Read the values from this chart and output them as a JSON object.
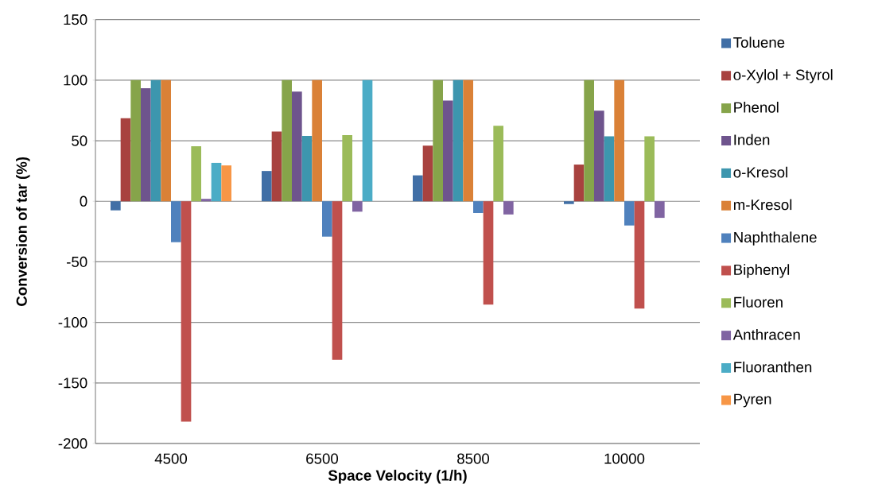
{
  "chart_data": {
    "type": "bar",
    "xlabel": "Space Velocity (1/h)",
    "ylabel": "Conversion of tar (%)",
    "categories": [
      "4500",
      "6500",
      "8500",
      "10000"
    ],
    "ylim": [
      -200,
      150
    ],
    "yticks": [
      -200,
      -150,
      -100,
      -50,
      0,
      50,
      100,
      150
    ],
    "grid": "y",
    "legend": "right",
    "series": [
      {
        "name": "Toluene",
        "color": "#416fa6",
        "values": [
          -7.5,
          25,
          21.4,
          -2.3
        ]
      },
      {
        "name": "o-Xylol + Styrol",
        "color": "#a8423f",
        "values": [
          68.5,
          57.6,
          46,
          30.3
        ]
      },
      {
        "name": "Phenol",
        "color": "#86a44a",
        "values": [
          100,
          100,
          100,
          100
        ]
      },
      {
        "name": "Inden",
        "color": "#6e548d",
        "values": [
          93.3,
          90.5,
          83.2,
          74.8
        ]
      },
      {
        "name": "o-Kresol",
        "color": "#3d96ae",
        "values": [
          100,
          54,
          100,
          53.6
        ]
      },
      {
        "name": "m-Kresol",
        "color": "#da8137",
        "values": [
          100,
          100,
          100,
          100
        ]
      },
      {
        "name": "Naphthalene",
        "color": "#4f81bd",
        "values": [
          -33.8,
          -29.2,
          -9.7,
          -20
        ]
      },
      {
        "name": "Biphenyl",
        "color": "#c0504d",
        "values": [
          -182,
          -131,
          -85.3,
          -88.6
        ]
      },
      {
        "name": "Fluoren",
        "color": "#9bbb59",
        "values": [
          45.4,
          54.6,
          62.4,
          53.6
        ]
      },
      {
        "name": "Anthracen",
        "color": "#8064a2",
        "values": [
          2,
          -8.6,
          -10.9,
          -13.7
        ]
      },
      {
        "name": "Fluoranthen",
        "color": "#4bacc6",
        "values": [
          31.7,
          100,
          null,
          null
        ]
      },
      {
        "name": "Pyren",
        "color": "#f79646",
        "values": [
          29.6,
          null,
          null,
          null
        ]
      }
    ]
  }
}
